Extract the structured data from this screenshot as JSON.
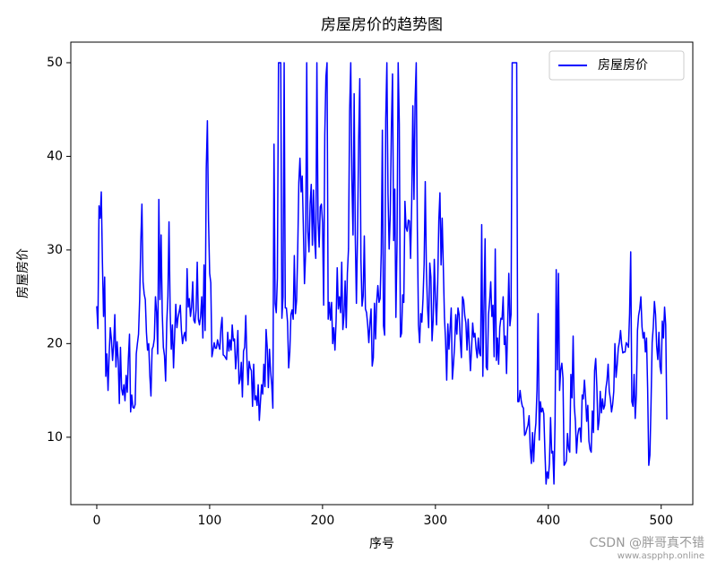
{
  "chart_data": {
    "type": "line",
    "title": "房屋房价的趋势图",
    "x_label": "序号",
    "y_label": "房屋房价",
    "xlim": [
      -23,
      528
    ],
    "xticks": [
      0,
      100,
      200,
      300,
      400,
      500
    ],
    "ylim": [
      2.8,
      52.2
    ],
    "yticks": [
      10,
      20,
      30,
      40,
      50
    ],
    "legend_position": "upper right",
    "grid": false,
    "series": [
      {
        "name": "房屋房价",
        "color": "#0000ff",
        "values": [
          24.0,
          21.6,
          34.7,
          33.4,
          36.2,
          28.7,
          22.9,
          27.1,
          16.5,
          18.9,
          15.0,
          18.9,
          21.7,
          20.4,
          18.2,
          19.9,
          23.1,
          17.5,
          20.2,
          18.2,
          13.6,
          19.6,
          15.2,
          14.5,
          15.6,
          13.9,
          16.6,
          14.8,
          18.4,
          21.0,
          12.7,
          14.5,
          13.2,
          13.1,
          13.5,
          18.9,
          20.0,
          21.0,
          24.7,
          30.8,
          34.9,
          26.6,
          25.3,
          24.7,
          21.2,
          19.3,
          20.0,
          16.6,
          14.4,
          19.4,
          19.7,
          20.5,
          25.0,
          23.4,
          18.9,
          35.4,
          24.7,
          31.6,
          23.3,
          19.6,
          18.7,
          16.0,
          22.2,
          25.0,
          33.0,
          23.5,
          19.4,
          22.0,
          17.4,
          20.9,
          24.2,
          21.7,
          22.8,
          23.4,
          24.1,
          21.4,
          20.0,
          20.8,
          21.2,
          20.3,
          28.0,
          23.9,
          24.8,
          22.9,
          23.9,
          26.6,
          22.5,
          22.2,
          23.6,
          28.7,
          22.6,
          22.0,
          22.9,
          25.0,
          20.6,
          28.4,
          21.4,
          38.7,
          43.8,
          33.2,
          27.5,
          26.5,
          18.6,
          19.3,
          20.1,
          19.5,
          19.5,
          20.4,
          19.8,
          19.4,
          21.7,
          22.8,
          18.8,
          18.7,
          18.5,
          18.3,
          21.2,
          19.2,
          20.4,
          19.3,
          22.0,
          20.3,
          20.5,
          17.3,
          18.8,
          21.4,
          15.7,
          16.2,
          18.0,
          14.3,
          19.2,
          19.6,
          23.0,
          18.4,
          15.6,
          18.1,
          17.4,
          17.1,
          13.3,
          17.8,
          14.0,
          14.4,
          13.4,
          15.6,
          11.8,
          13.8,
          15.6,
          14.6,
          17.8,
          15.4,
          21.5,
          19.6,
          15.3,
          19.4,
          17.0,
          15.6,
          13.1,
          41.3,
          24.3,
          23.3,
          27.0,
          50.0,
          50.0,
          50.0,
          22.7,
          25.0,
          50.0,
          23.8,
          23.8,
          22.3,
          17.4,
          19.1,
          23.1,
          23.6,
          22.6,
          29.4,
          23.2,
          24.6,
          29.9,
          37.2,
          39.8,
          36.2,
          37.9,
          32.5,
          26.4,
          29.6,
          50.0,
          32.0,
          29.8,
          34.9,
          37.0,
          30.5,
          36.4,
          31.1,
          29.1,
          50.0,
          33.3,
          30.3,
          34.6,
          34.9,
          32.9,
          24.1,
          42.3,
          48.5,
          50.0,
          22.6,
          24.4,
          22.5,
          24.4,
          20.0,
          21.7,
          19.3,
          22.4,
          28.1,
          23.7,
          25.0,
          23.3,
          28.7,
          21.5,
          23.0,
          26.7,
          21.7,
          27.5,
          30.1,
          44.8,
          50.0,
          37.6,
          31.6,
          46.7,
          31.5,
          24.3,
          31.7,
          41.7,
          48.3,
          29.0,
          24.0,
          25.1,
          31.5,
          23.7,
          23.3,
          22.0,
          20.1,
          22.2,
          23.7,
          17.6,
          18.5,
          24.3,
          20.5,
          24.5,
          26.2,
          24.4,
          24.8,
          29.6,
          42.8,
          21.9,
          20.9,
          44.0,
          50.0,
          36.0,
          30.1,
          33.8,
          43.1,
          48.8,
          31.0,
          36.5,
          22.8,
          30.7,
          50.0,
          43.5,
          20.7,
          21.1,
          25.2,
          24.4,
          35.2,
          32.4,
          32.0,
          33.2,
          33.1,
          29.1,
          35.1,
          45.4,
          35.4,
          46.0,
          50.0,
          32.2,
          22.0,
          20.1,
          23.2,
          22.3,
          24.8,
          28.5,
          37.3,
          27.9,
          23.9,
          21.7,
          28.6,
          27.1,
          20.3,
          22.5,
          29.0,
          24.8,
          22.0,
          26.4,
          33.1,
          36.1,
          28.4,
          33.4,
          28.2,
          22.8,
          20.3,
          16.1,
          22.1,
          19.4,
          21.6,
          23.8,
          16.2,
          17.8,
          19.8,
          23.1,
          21.0,
          23.8,
          23.1,
          20.4,
          18.5,
          25.0,
          24.6,
          23.0,
          22.2,
          19.3,
          22.6,
          19.8,
          17.1,
          19.4,
          22.2,
          20.7,
          21.1,
          19.5,
          18.5,
          20.6,
          19.0,
          18.7,
          32.7,
          16.5,
          23.9,
          31.2,
          17.5,
          17.2,
          23.1,
          24.5,
          26.6,
          22.9,
          24.1,
          18.6,
          30.1,
          18.2,
          20.6,
          17.8,
          21.7,
          22.7,
          22.6,
          25.0,
          19.9,
          20.8,
          16.8,
          21.9,
          27.5,
          21.9,
          23.1,
          50.0,
          50.0,
          50.0,
          50.0,
          50.0,
          13.8,
          13.8,
          15.0,
          13.9,
          13.3,
          13.1,
          10.2,
          10.4,
          10.9,
          11.3,
          12.3,
          8.8,
          7.2,
          10.5,
          7.4,
          10.2,
          11.5,
          15.1,
          23.2,
          9.7,
          13.8,
          12.7,
          13.1,
          12.5,
          8.5,
          5.0,
          6.3,
          5.6,
          7.2,
          12.1,
          8.3,
          8.5,
          5.0,
          11.9,
          27.9,
          17.2,
          27.5,
          15.0,
          17.2,
          17.9,
          16.3,
          7.0,
          7.2,
          7.5,
          10.4,
          8.8,
          8.4,
          16.7,
          14.2,
          20.8,
          13.4,
          11.7,
          8.3,
          10.2,
          10.9,
          11.0,
          9.5,
          14.5,
          14.1,
          16.1,
          14.3,
          11.7,
          13.4,
          9.6,
          8.7,
          8.4,
          12.8,
          10.5,
          17.1,
          18.4,
          15.4,
          10.8,
          11.8,
          14.9,
          12.6,
          14.1,
          13.0,
          13.4,
          15.2,
          16.1,
          17.8,
          14.9,
          14.1,
          12.7,
          13.5,
          14.9,
          20.0,
          16.4,
          17.7,
          19.5,
          20.2,
          21.4,
          19.9,
          19.0,
          19.1,
          19.1,
          20.1,
          19.9,
          19.6,
          23.2,
          29.8,
          13.8,
          13.3,
          16.7,
          12.0,
          14.6,
          21.4,
          23.0,
          23.7,
          25.0,
          21.8,
          20.6,
          21.2,
          19.1,
          20.6,
          15.2,
          7.0,
          8.1,
          13.6,
          20.1,
          21.8,
          24.5,
          23.1,
          19.7,
          18.3,
          21.2,
          17.5,
          16.8,
          22.4,
          20.6,
          23.9,
          22.0,
          11.9
        ]
      }
    ]
  },
  "watermark": {
    "text": "CSDN @胖哥真不错",
    "site": "www.aspphp.online"
  }
}
